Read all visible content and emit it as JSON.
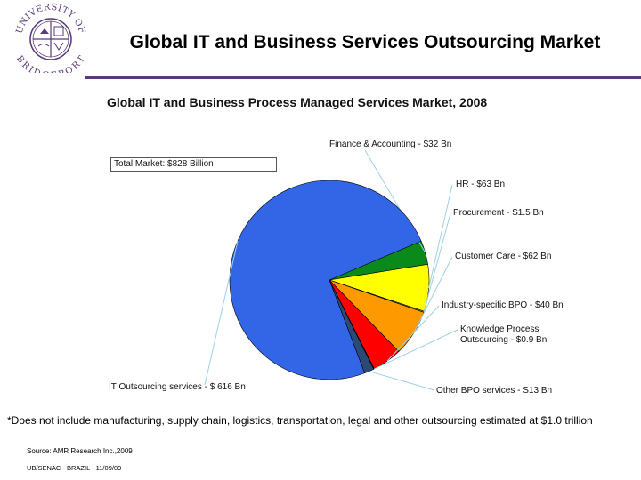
{
  "header": {
    "title": "Global IT and Business Services Outsourcing Market",
    "logo_text_top": "UNIVERSITY OF",
    "logo_text_bottom": "BRIDGEPORT"
  },
  "colors": {
    "rule": "#5a3a78",
    "logo": "#5a3a78"
  },
  "chart_data": {
    "type": "pie",
    "title": "Global IT and Business Process Managed Services Market, 2008",
    "total_label": "Total Market:  $828 Billion",
    "slices": [
      {
        "name": "Finance & Accounting",
        "value": 32,
        "label": "Finance & Accounting - $32 Bn",
        "color": "#0a8a1a"
      },
      {
        "name": "HR",
        "value": 63,
        "label": "HR - $63 Bn",
        "color": "#ffff00"
      },
      {
        "name": "Procurement",
        "value": 1.5,
        "label": "Procurement - S1.5 Bn",
        "color": "#a0a000"
      },
      {
        "name": "Customer Care",
        "value": 62,
        "label": "Customer Care - $62  Bn",
        "color": "#ff9900"
      },
      {
        "name": "Industry-specific BPO",
        "value": 40,
        "label": "Industry-specific BPO - $40 Bn",
        "color": "#ff0000"
      },
      {
        "name": "Knowledge Process Outsourcing",
        "value": 0.9,
        "label": "Knowledge Process Outsourcing - $0.9 Bn",
        "label_line1": "Knowledge Process",
        "label_line2": "Outsourcing - $0.9 Bn",
        "color": "#6a0000"
      },
      {
        "name": "Other BPO services",
        "value": 13,
        "label": "Other BPO services - S13 Bn",
        "color": "#2c4a78"
      },
      {
        "name": "IT Outsourcing services",
        "value": 616,
        "label": "IT Outsourcing services - $ 616 Bn",
        "color": "#3366e6"
      }
    ]
  },
  "footnote": "*Does not include manufacturing, supply chain, logistics, transportation, legal and other outsourcing estimated at $1.0 trillion",
  "source": "Source: AMR Research Inc.,2009",
  "footer": "UB/SENAC - BRAZIL - 11/09/09"
}
